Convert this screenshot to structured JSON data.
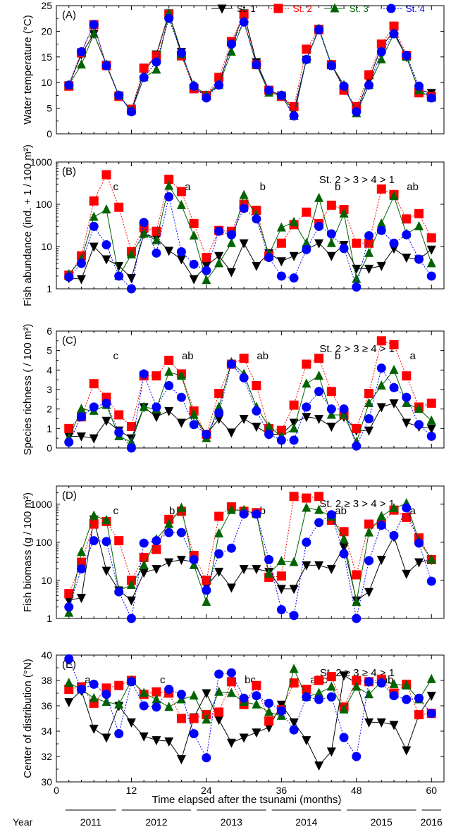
{
  "legend": [
    {
      "name": "St. 1",
      "color": "#000000",
      "marker": "triangle-down",
      "dash": "solid"
    },
    {
      "name": "St. 2",
      "color": "#ff0000",
      "marker": "square",
      "dash": "dotted"
    },
    {
      "name": "St. 3",
      "color": "#006400",
      "marker": "triangle-up",
      "dash": "solid"
    },
    {
      "name": "St. 4",
      "color": "#0000ff",
      "marker": "circle",
      "dash": "dotted"
    }
  ],
  "x_axis": {
    "label": "Time elapsed after the tsunami (months)",
    "range": [
      0,
      62
    ],
    "ticks": [
      0,
      12,
      24,
      36,
      48,
      60
    ],
    "tick_labels": [
      "0",
      "12",
      "24",
      "36",
      "48",
      "60"
    ]
  },
  "year_row": {
    "label": "Year",
    "years": [
      {
        "label": "2011",
        "from": 1,
        "to": 10
      },
      {
        "label": "2012",
        "from": 10,
        "to": 22
      },
      {
        "label": "2013",
        "from": 22,
        "to": 34
      },
      {
        "label": "2014",
        "from": 34,
        "to": 46
      },
      {
        "label": "2015",
        "from": 46,
        "to": 58
      },
      {
        "label": "2016",
        "from": 58,
        "to": 62
      }
    ]
  },
  "chart_data": [
    {
      "panel": "A",
      "panel_label": "(A)",
      "type": "line",
      "ylabel": "Water temperature (°C)",
      "yscale": "linear",
      "ylim": [
        0,
        25
      ],
      "yticks": [
        0,
        5,
        10,
        15,
        20,
        25
      ],
      "ytick_labels": [
        "0",
        "5",
        "10",
        "15",
        "20",
        "25"
      ],
      "significance": "",
      "annotations": [],
      "x": [
        2,
        4,
        6,
        8,
        10,
        12,
        14,
        16,
        18,
        20,
        22,
        24,
        26,
        28,
        30,
        32,
        34,
        36,
        38,
        40,
        42,
        44,
        46,
        48,
        50,
        52,
        54,
        56,
        58,
        60
      ],
      "series": [
        {
          "name": "St. 1",
          "values": [
            9.5,
            15.5,
            19.5,
            13.5,
            7.5,
            4.5,
            12,
            15.5,
            23.5,
            16,
            9,
            7.5,
            10,
            17,
            23.5,
            14,
            8.5,
            7.5,
            4.5,
            14.5,
            20.5,
            13.5,
            9,
            4.5,
            10.5,
            17,
            20,
            15,
            8.5,
            8
          ]
        },
        {
          "name": "St. 2",
          "values": [
            9.3,
            15.8,
            21.3,
            13.3,
            7.3,
            4.8,
            12.8,
            15.2,
            23.3,
            15.2,
            8.8,
            7.5,
            11,
            18,
            23.3,
            13.5,
            8.5,
            7.3,
            5.3,
            16.5,
            20.3,
            13.5,
            8.5,
            5.3,
            11.5,
            17.5,
            21,
            15.3,
            8,
            7.3
          ]
        },
        {
          "name": "St. 3",
          "values": [
            9.5,
            13.5,
            19.5,
            13.5,
            7.5,
            4.5,
            11,
            12.5,
            23.5,
            15.5,
            9.5,
            7.5,
            9.5,
            16,
            22,
            13.5,
            8,
            7.5,
            3.5,
            14.5,
            20.5,
            13.5,
            9.5,
            4,
            9.5,
            14.5,
            19.5,
            15,
            8.5,
            7
          ]
        },
        {
          "name": "St. 4",
          "values": [
            9.5,
            16,
            21.3,
            13.3,
            7.5,
            4.3,
            11,
            14,
            22.5,
            15.8,
            9.3,
            7,
            9.5,
            17.5,
            21.8,
            13.5,
            8.5,
            7.5,
            3.5,
            14.5,
            20.3,
            13.3,
            9.3,
            4.3,
            9.5,
            16,
            19.5,
            15.3,
            9.3,
            7
          ]
        }
      ]
    },
    {
      "panel": "B",
      "panel_label": "(B)",
      "type": "line",
      "ylabel": "Fish abundance (ind. + 1 / 100 m²)",
      "yscale": "log",
      "ylim": [
        1,
        1000
      ],
      "yticks": [
        1,
        10,
        100,
        1000
      ],
      "ytick_labels": [
        "1",
        "10",
        "100",
        "1000"
      ],
      "significance": "St. 2 > 3 > 4 > 1",
      "annotations": [
        {
          "text": "c",
          "x": 9.5
        },
        {
          "text": "a",
          "x": 21
        },
        {
          "text": "b",
          "x": 33
        },
        {
          "text": "b",
          "x": 45
        },
        {
          "text": "ab",
          "x": 57
        }
      ],
      "x": [
        2,
        4,
        6,
        8,
        10,
        12,
        14,
        16,
        18,
        20,
        22,
        24,
        26,
        28,
        30,
        32,
        34,
        36,
        38,
        40,
        42,
        44,
        46,
        48,
        50,
        52,
        54,
        56,
        58,
        60
      ],
      "series": [
        {
          "name": "St. 1",
          "values": [
            1.8,
            1.7,
            10,
            5,
            3.5,
            1.8,
            20,
            16,
            8,
            5,
            1.7,
            3.5,
            6,
            2.5,
            12,
            3.5,
            7,
            4.5,
            6,
            8.5,
            12,
            6,
            11,
            3,
            3,
            3.5,
            9,
            5.5,
            5,
            8.5
          ]
        },
        {
          "name": "St. 2",
          "values": [
            2.1,
            6,
            120,
            500,
            85,
            7.5,
            28,
            23,
            390,
            200,
            35,
            5.5,
            24,
            23,
            100,
            72,
            6,
            12,
            33,
            65,
            35,
            95,
            75,
            12,
            12,
            230,
            170,
            45,
            60,
            16
          ]
        },
        {
          "name": "St. 3",
          "values": [
            2.2,
            5,
            50,
            75,
            2,
            6.5,
            20,
            14,
            270,
            95,
            18,
            1.6,
            4,
            12,
            165,
            55,
            6.5,
            28,
            38,
            12,
            140,
            12,
            60,
            1.7,
            7,
            35,
            155,
            20,
            30,
            4
          ]
        },
        {
          "name": "St. 4",
          "values": [
            1.9,
            4,
            30,
            11,
            2,
            1,
            37,
            7,
            150,
            7.5,
            3.8,
            2.7,
            23,
            19,
            80,
            45,
            5.5,
            2,
            1.8,
            8.5,
            30,
            20,
            9,
            1.1,
            18,
            24,
            12,
            19,
            5,
            2
          ]
        }
      ]
    },
    {
      "panel": "C",
      "panel_label": "(C)",
      "type": "line",
      "ylabel": "Species richness ( / 100 m²)",
      "yscale": "linear",
      "ylim": [
        0,
        6
      ],
      "yticks": [
        0,
        1,
        2,
        3,
        4,
        5,
        6
      ],
      "ytick_labels": [
        "0",
        "1",
        "2",
        "3",
        "4",
        "5",
        "6"
      ],
      "significance": "St. 2 > 3 ≥ 4 > 1",
      "annotations": [
        {
          "text": "c",
          "x": 9.5
        },
        {
          "text": "ab",
          "x": 21
        },
        {
          "text": "ab",
          "x": 33
        },
        {
          "text": "b",
          "x": 45
        },
        {
          "text": "a",
          "x": 57
        }
      ],
      "x": [
        2,
        4,
        6,
        8,
        10,
        12,
        14,
        16,
        18,
        20,
        22,
        24,
        26,
        28,
        30,
        32,
        34,
        36,
        38,
        40,
        42,
        44,
        46,
        48,
        50,
        52,
        54,
        56,
        58,
        60
      ],
      "series": [
        {
          "name": "St. 1",
          "values": [
            0.6,
            0.6,
            0.5,
            1.4,
            0.9,
            0.5,
            2.1,
            1.6,
            1.9,
            1.3,
            1.7,
            0.7,
            1.5,
            0.8,
            1.5,
            1.1,
            0.7,
            0.7,
            1.3,
            1.6,
            1.5,
            1.1,
            1.6,
            0.9,
            0.9,
            2.1,
            2.3,
            1.3,
            1.1,
            1.0
          ]
        },
        {
          "name": "St. 2",
          "values": [
            1.0,
            1.6,
            3.3,
            2.6,
            1.7,
            1.1,
            3.7,
            3.7,
            4.5,
            3.8,
            1.9,
            0.7,
            2.8,
            4.3,
            4.6,
            3.2,
            1.0,
            0.9,
            2.2,
            4.3,
            4.6,
            2.9,
            1.7,
            1.0,
            2.8,
            5.5,
            5.3,
            3.7,
            2.1,
            2.3
          ]
        },
        {
          "name": "St. 3",
          "values": [
            0.5,
            2.0,
            1.9,
            2.2,
            0.6,
            0.3,
            2.1,
            2.0,
            3.9,
            3.7,
            1.7,
            0.5,
            2.1,
            4.4,
            3.8,
            2.1,
            1.1,
            0.6,
            1.0,
            3.3,
            3.7,
            1.7,
            1.7,
            0.3,
            2.3,
            3.2,
            4.0,
            2.3,
            2.0,
            1.4
          ]
        },
        {
          "name": "St. 4",
          "values": [
            0.3,
            1.6,
            2.1,
            2.3,
            0.8,
            0.0,
            3.8,
            2.1,
            3.2,
            2.6,
            1.2,
            0.7,
            1.8,
            4.3,
            3.6,
            1.9,
            0.7,
            0.4,
            0.4,
            2.1,
            2.9,
            2.0,
            2.0,
            0.1,
            1.5,
            4.1,
            3.1,
            2.6,
            1.2,
            0.6
          ]
        }
      ]
    },
    {
      "panel": "D",
      "panel_label": "(D)",
      "type": "line",
      "ylabel": "Fish biomass (g / 100 m²)",
      "yscale": "log",
      "ylim": [
        1,
        3000
      ],
      "yticks": [
        1,
        10,
        100,
        1000
      ],
      "ytick_labels": [
        "1",
        "10",
        "100",
        "1000"
      ],
      "significance": "St. 2 ≥ 3 > 4 > 1",
      "annotations": [
        {
          "text": "c",
          "x": 9.5
        },
        {
          "text": "b",
          "x": 18.5
        },
        {
          "text": "b",
          "x": 33
        },
        {
          "text": "ab",
          "x": 45.5
        },
        {
          "text": "a",
          "x": 57
        }
      ],
      "x": [
        2,
        4,
        6,
        8,
        10,
        12,
        14,
        16,
        18,
        20,
        22,
        24,
        26,
        28,
        30,
        32,
        34,
        36,
        38,
        40,
        42,
        44,
        46,
        48,
        50,
        52,
        54,
        56,
        58,
        60
      ],
      "series": [
        {
          "name": "St. 1",
          "values": [
            3,
            3.5,
            400,
            18,
            5.5,
            3,
            16,
            20,
            30,
            35,
            30,
            7,
            17,
            6.5,
            20,
            20,
            17,
            6,
            6,
            25,
            25,
            20,
            75,
            3,
            5,
            35,
            140,
            15,
            30,
            35
          ]
        },
        {
          "name": "St. 2",
          "values": [
            4.5,
            30,
            300,
            350,
            110,
            10,
            40,
            65,
            400,
            650,
            45,
            10,
            480,
            850,
            650,
            600,
            12,
            13,
            1600,
            1450,
            1600,
            380,
            190,
            14,
            300,
            300,
            700,
            450,
            130,
            35
          ]
        },
        {
          "name": "St. 3",
          "values": [
            1.4,
            55,
            500,
            380,
            5.5,
            7.5,
            25,
            120,
            300,
            800,
            25,
            2.7,
            170,
            700,
            700,
            550,
            15,
            32,
            30,
            800,
            700,
            470,
            120,
            2.7,
            180,
            480,
            780,
            1050,
            110,
            35
          ]
        },
        {
          "name": "St. 4",
          "values": [
            2,
            20,
            110,
            105,
            5,
            1,
            95,
            110,
            180,
            180,
            35,
            5.5,
            50,
            70,
            550,
            550,
            35,
            1.7,
            1.2,
            100,
            330,
            530,
            50,
            1,
            33,
            280,
            150,
            800,
            95,
            9.5
          ]
        }
      ]
    },
    {
      "panel": "E",
      "panel_label": "(E)",
      "type": "line",
      "ylabel": "Center of distribution (°N)",
      "yscale": "linear",
      "ylim": [
        30,
        40
      ],
      "yticks": [
        30,
        32,
        34,
        36,
        38,
        40
      ],
      "ytick_labels": [
        "30",
        "32",
        "34",
        "36",
        "38",
        "40"
      ],
      "significance": "St. 2 ≥ 3 ≥ 4 > 1",
      "annotations": [
        {
          "text": "a",
          "x": 5
        },
        {
          "text": "c",
          "x": 17
        },
        {
          "text": "bc",
          "x": 31
        },
        {
          "text": "abc",
          "x": 42
        },
        {
          "text": "ab",
          "x": 53
        }
      ],
      "x": [
        2,
        4,
        6,
        8,
        10,
        12,
        14,
        16,
        18,
        20,
        22,
        24,
        26,
        28,
        30,
        32,
        34,
        36,
        38,
        40,
        42,
        44,
        46,
        48,
        50,
        52,
        54,
        56,
        58,
        60
      ],
      "series": [
        {
          "name": "St. 1",
          "values": [
            36.3,
            37.2,
            34.2,
            33.5,
            36,
            34.7,
            33.6,
            33.3,
            33.2,
            31.8,
            35.1,
            37,
            34.9,
            33.1,
            33.5,
            33.9,
            34.3,
            36.1,
            34.7,
            33.3,
            31.3,
            32.4,
            38.4,
            37.8,
            34.7,
            34.7,
            34.5,
            32.5,
            35.3,
            36.8
          ]
        },
        {
          "name": "St. 2",
          "values": [
            37.3,
            37.5,
            36.2,
            37.4,
            37.6,
            38,
            36.9,
            37.1,
            37,
            35,
            35,
            35.3,
            35.5,
            37.9,
            36.1,
            37.6,
            34.8,
            35.7,
            37.8,
            37.3,
            38,
            38.3,
            35.9,
            38,
            37.9,
            38.1,
            37,
            37.7,
            35.3,
            35.4
          ]
        },
        {
          "name": "St. 3",
          "values": [
            37.8,
            37.3,
            36.6,
            36.3,
            36.1,
            38,
            37,
            36.5,
            35.9,
            36.5,
            36.8,
            34.9,
            37.1,
            37,
            36.3,
            36.1,
            35.5,
            35.2,
            38.9,
            36.7,
            37,
            37.5,
            35.7,
            37.5,
            36.9,
            37.9,
            37.7,
            37.6,
            36.5,
            38.1
          ]
        },
        {
          "name": "St. 4",
          "values": [
            39.7,
            37.3,
            37.7,
            36.9,
            33.8,
            37.9,
            36,
            35.9,
            37.3,
            36.9,
            33.8,
            31.9,
            38.5,
            38.6,
            36.6,
            36.8,
            36.2,
            35.6,
            34.1,
            36.7,
            36.5,
            36.7,
            33.5,
            32,
            37.9,
            37.8,
            36.8,
            36.5,
            36.6,
            35.4
          ]
        }
      ]
    }
  ]
}
